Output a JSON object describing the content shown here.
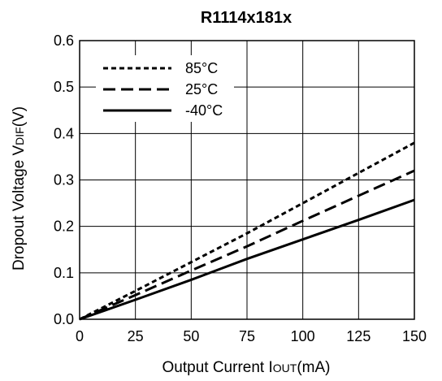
{
  "chart_data": {
    "type": "line",
    "title": "R1114x181x",
    "xlabel": {
      "prefix": "Output Current I",
      "subscript": "OUT",
      "suffix": "(mA)"
    },
    "ylabel": {
      "prefix": "Dropout Voltage V",
      "subscript": "DIF",
      "suffix": "(V)"
    },
    "xlim": [
      0,
      150
    ],
    "ylim": [
      0,
      0.6
    ],
    "xticks": [
      0,
      25,
      50,
      75,
      100,
      125,
      150
    ],
    "yticks": [
      0.0,
      0.1,
      0.2,
      0.3,
      0.4,
      0.5,
      0.6
    ],
    "xtick_labels": [
      "0",
      "25",
      "50",
      "75",
      "100",
      "125",
      "150"
    ],
    "ytick_labels": [
      "0.0",
      "0.1",
      "0.2",
      "0.3",
      "0.4",
      "0.5",
      "0.6"
    ],
    "grid": true,
    "legend_position": "top-left",
    "series": [
      {
        "name": "85°C",
        "style": "dotted",
        "color": "#000000",
        "x": [
          0,
          25,
          50,
          75,
          100,
          125,
          150
        ],
        "y": [
          0,
          0.061,
          0.123,
          0.185,
          0.25,
          0.315,
          0.38
        ]
      },
      {
        "name": "25°C",
        "style": "dashed",
        "color": "#000000",
        "x": [
          0,
          25,
          50,
          75,
          100,
          125,
          150
        ],
        "y": [
          0,
          0.052,
          0.105,
          0.157,
          0.212,
          0.266,
          0.32
        ]
      },
      {
        "name": "-40°C",
        "style": "solid",
        "color": "#000000",
        "x": [
          0,
          25,
          50,
          75,
          100,
          125,
          150
        ],
        "y": [
          0,
          0.042,
          0.085,
          0.13,
          0.172,
          0.214,
          0.257
        ]
      }
    ]
  }
}
